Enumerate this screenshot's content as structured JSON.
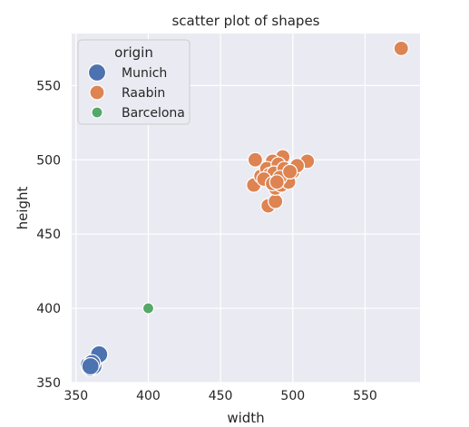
{
  "chart_data": {
    "type": "scatter",
    "title": "scatter plot of shapes",
    "xlabel": "width",
    "ylabel": "height",
    "xlim": [
      347,
      588
    ],
    "ylim": [
      350,
      585
    ],
    "xticks": [
      350,
      400,
      450,
      500,
      550
    ],
    "yticks": [
      350,
      400,
      450,
      500,
      550
    ],
    "grid": true,
    "background": "#eaeaf2",
    "legend": {
      "title": "origin",
      "placement": "top-left",
      "entries": [
        "Munich",
        "Raabin",
        "Barcelona"
      ]
    },
    "series": [
      {
        "name": "Munich",
        "color": "#4c72b0",
        "size": "large",
        "points": [
          {
            "x": 360,
            "y": 360
          },
          {
            "x": 362,
            "y": 361
          },
          {
            "x": 359,
            "y": 362
          },
          {
            "x": 366,
            "y": 369
          },
          {
            "x": 361,
            "y": 363
          },
          {
            "x": 360,
            "y": 361
          }
        ]
      },
      {
        "name": "Raabin",
        "color": "#dd8452",
        "size": "medium",
        "points": [
          {
            "x": 575,
            "y": 575
          },
          {
            "x": 474,
            "y": 500
          },
          {
            "x": 473,
            "y": 483
          },
          {
            "x": 483,
            "y": 469
          },
          {
            "x": 488,
            "y": 472
          },
          {
            "x": 510,
            "y": 499
          },
          {
            "x": 493,
            "y": 502
          },
          {
            "x": 486,
            "y": 499
          },
          {
            "x": 478,
            "y": 489
          },
          {
            "x": 482,
            "y": 494
          },
          {
            "x": 490,
            "y": 493
          },
          {
            "x": 495,
            "y": 490
          },
          {
            "x": 500,
            "y": 492
          },
          {
            "x": 503,
            "y": 496
          },
          {
            "x": 485,
            "y": 487
          },
          {
            "x": 488,
            "y": 481
          },
          {
            "x": 492,
            "y": 483
          },
          {
            "x": 497,
            "y": 485
          },
          {
            "x": 484,
            "y": 490
          },
          {
            "x": 490,
            "y": 497
          },
          {
            "x": 487,
            "y": 491
          },
          {
            "x": 494,
            "y": 494
          },
          {
            "x": 480,
            "y": 487
          },
          {
            "x": 491,
            "y": 488
          },
          {
            "x": 486,
            "y": 484
          },
          {
            "x": 489,
            "y": 485
          },
          {
            "x": 498,
            "y": 492
          }
        ]
      },
      {
        "name": "Barcelona",
        "color": "#55a868",
        "size": "small",
        "points": [
          {
            "x": 400,
            "y": 400
          }
        ]
      }
    ]
  }
}
